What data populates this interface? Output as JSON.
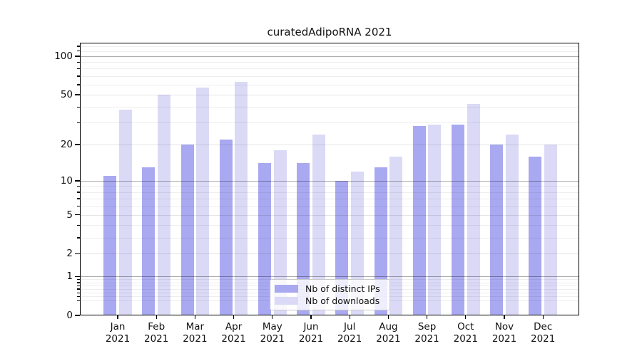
{
  "title": "curatedAdipoRNA 2021",
  "chart_data": {
    "type": "bar",
    "categories": [
      "Jan 2021",
      "Feb 2021",
      "Mar 2021",
      "Apr 2021",
      "May 2021",
      "Jun 2021",
      "Jul 2021",
      "Aug 2021",
      "Sep 2021",
      "Oct 2021",
      "Nov 2021",
      "Dec 2021"
    ],
    "months": [
      "Jan",
      "Feb",
      "Mar",
      "Apr",
      "May",
      "Jun",
      "Jul",
      "Aug",
      "Sep",
      "Oct",
      "Nov",
      "Dec"
    ],
    "year_label": "2021",
    "series": [
      {
        "name": "Nb of distinct IPs",
        "color": "#a9a9f1",
        "values": [
          11,
          13,
          20,
          22,
          14,
          14,
          10,
          13,
          28,
          29,
          20,
          16
        ]
      },
      {
        "name": "Nb of downloads",
        "color": "#dadaf6",
        "values": [
          38,
          50,
          57,
          63,
          18,
          24,
          12,
          16,
          29,
          42,
          24,
          20
        ]
      }
    ],
    "title": "curatedAdipoRNA 2021",
    "xlabel": "",
    "ylabel": "",
    "yscale": "log10(1+v) (log-like axis including 0)",
    "yticks": [
      0,
      1,
      2,
      5,
      10,
      20,
      50,
      100
    ],
    "minor_ticks": [
      0.3,
      0.4,
      0.5,
      0.6,
      0.7,
      0.8,
      0.9,
      3,
      4,
      6,
      7,
      8,
      9,
      30,
      40,
      60,
      70,
      80,
      90,
      110,
      120
    ],
    "ylim": [
      0,
      128
    ],
    "grid": "on",
    "legend_position": "inside bottom-center"
  }
}
